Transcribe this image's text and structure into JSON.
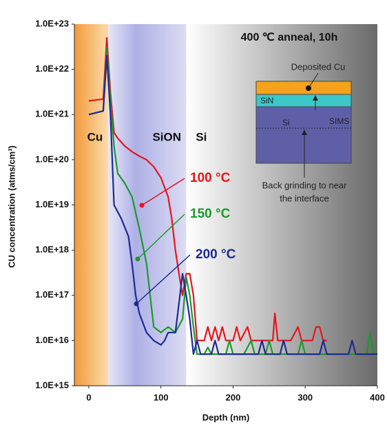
{
  "chart_data": {
    "type": "line",
    "title": "400 ℃ anneal, 10h",
    "xlabel": "Depth (nm)",
    "ylabel": "CU concentration (atms/cm³)",
    "ylog": true,
    "xlim": [
      -20,
      400
    ],
    "xticks": [
      0,
      100,
      200,
      300,
      400
    ],
    "ylim": [
      1000000000000000.0,
      1e+23
    ],
    "yticks": [
      {
        "value": 1000000000000000.0,
        "label": "1.0E+15"
      },
      {
        "value": 1e+16,
        "label": "1.0E+16"
      },
      {
        "value": 1e+17,
        "label": "1.0E+17"
      },
      {
        "value": 1e+18,
        "label": "1.0E+18"
      },
      {
        "value": 1e+19,
        "label": "1.0E+19"
      },
      {
        "value": 1e+20,
        "label": "1.0E+20"
      },
      {
        "value": 1e+21,
        "label": "1.0E+21"
      },
      {
        "value": 1e+22,
        "label": "1.0E+22"
      },
      {
        "value": 1e+23,
        "label": "1.0E+23"
      }
    ],
    "regions": [
      {
        "label": "Cu",
        "range": [
          -20,
          27
        ]
      },
      {
        "label": "SiON",
        "range": [
          27,
          135
        ]
      },
      {
        "label": "Si",
        "range": [
          135,
          400
        ]
      }
    ],
    "series": [
      {
        "name": "100 °C",
        "color": "#e8141c",
        "x": [
          0,
          20,
          25,
          30,
          35,
          40,
          50,
          60,
          70,
          80,
          90,
          100,
          110,
          115,
          120,
          125,
          130,
          135,
          140,
          145,
          150,
          160,
          165,
          170,
          175,
          180,
          185,
          190,
          200,
          205,
          210,
          220,
          225,
          240,
          250,
          255,
          258,
          262,
          280,
          290,
          295,
          310,
          315,
          320,
          325,
          330
        ],
        "values": [
          2e+21,
          2.2e+21,
          5e+22,
          3e+21,
          4e+20,
          3e+20,
          2e+20,
          1.5e+20,
          1.2e+20,
          1e+20,
          7e+19,
          4e+19,
          1.5e+19,
          5e+18,
          1e+18,
          3e+17,
          1e+17,
          3e+17,
          3e+17,
          1e+17,
          1e+16,
          1e+16,
          2e+16,
          1e+16,
          2e+16,
          1e+16,
          2e+16,
          1e+16,
          1e+16,
          2e+16,
          1e+16,
          2e+16,
          1e+16,
          1e+16,
          1e+16,
          1e+16,
          4e+16,
          1e+16,
          1e+16,
          2e+16,
          1e+16,
          1e+16,
          2e+16,
          2e+16,
          1e+16,
          1e+16
        ]
      },
      {
        "name": "150 °C",
        "color": "#1a9a2a",
        "x": [
          0,
          20,
          25,
          30,
          35,
          40,
          50,
          60,
          70,
          80,
          85,
          90,
          100,
          110,
          120,
          130,
          135,
          140,
          145,
          150,
          160,
          165,
          170,
          190,
          195,
          200,
          215,
          225,
          230,
          245,
          250,
          255,
          290,
          295,
          300,
          320,
          385,
          390,
          395,
          400
        ],
        "values": [
          1e+21,
          1.2e+21,
          3e+22,
          2e+21,
          2e+20,
          5e+19,
          3e+19,
          1.5e+19,
          3e+18,
          5e+17,
          1e+17,
          2e+16,
          1.5e+16,
          2e+16,
          1.5e+16,
          3e+16,
          2.5e+17,
          1e+17,
          2e+16,
          5000000000000000.0,
          5000000000000000.0,
          7000000000000000.0,
          5000000000000000.0,
          5000000000000000.0,
          1e+16,
          5000000000000000.0,
          5000000000000000.0,
          1e+16,
          5000000000000000.0,
          5000000000000000.0,
          1e+16,
          5000000000000000.0,
          5000000000000000.0,
          1e+16,
          5000000000000000.0,
          5000000000000000.0,
          5000000000000000.0,
          1.5e+16,
          5000000000000000.0,
          5000000000000000.0
        ]
      },
      {
        "name": "200 °C",
        "color": "#1c2a96",
        "x": [
          0,
          20,
          25,
          30,
          35,
          45,
          55,
          60,
          65,
          70,
          80,
          90,
          100,
          105,
          110,
          120,
          130,
          135,
          140,
          145,
          150,
          155,
          170,
          175,
          180,
          235,
          240,
          245,
          265,
          270,
          275,
          320,
          325,
          330,
          360,
          365,
          370,
          400
        ],
        "values": [
          1e+21,
          1.2e+21,
          2e+22,
          1e+21,
          1e+19,
          5e+18,
          2e+18,
          5e+17,
          1e+17,
          4e+16,
          1.5e+16,
          1e+16,
          8000000000000000.0,
          1e+16,
          1.5e+16,
          1.5e+16,
          3e+17,
          1e+17,
          3e+16,
          5000000000000000.0,
          1e+16,
          5000000000000000.0,
          5000000000000000.0,
          1e+16,
          5000000000000000.0,
          5000000000000000.0,
          1e+16,
          5000000000000000.0,
          5000000000000000.0,
          1e+16,
          5000000000000000.0,
          5000000000000000.0,
          1e+16,
          5000000000000000.0,
          5000000000000000.0,
          1e+16,
          5000000000000000.0,
          5000000000000000.0
        ]
      }
    ]
  },
  "inset": {
    "deposited": "Deposited Cu",
    "sin": "SiN",
    "si": "Si",
    "sims": "SIMS",
    "note": [
      "Back grinding to near",
      "the interface"
    ]
  }
}
